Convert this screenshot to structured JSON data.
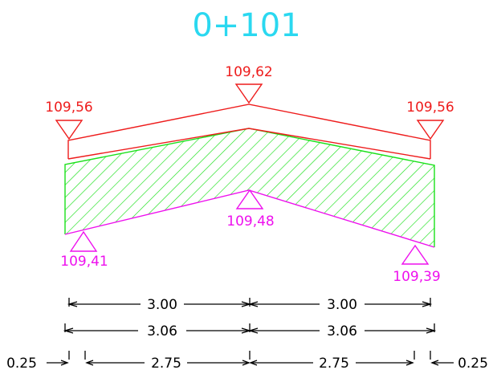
{
  "station": "0+101",
  "colors": {
    "station": "#2ad8f0",
    "surface": "#ee1c1c",
    "hatch": "#19e019",
    "subgrade": "#ee10ee",
    "dimension": "#000000"
  },
  "elevations": {
    "surface_left": "109,56",
    "surface_center": "109,62",
    "surface_right": "109,56",
    "subgrade_left": "109,41",
    "subgrade_center": "109,48",
    "subgrade_right": "109,39"
  },
  "dimensions": {
    "row1_left": "3.00",
    "row1_right": "3.00",
    "row2_left": "3.06",
    "row2_right": "3.06",
    "row3_left_edge": "0.25",
    "row3_left": "2.75",
    "row3_right": "2.75",
    "row3_right_edge": "0.25"
  }
}
